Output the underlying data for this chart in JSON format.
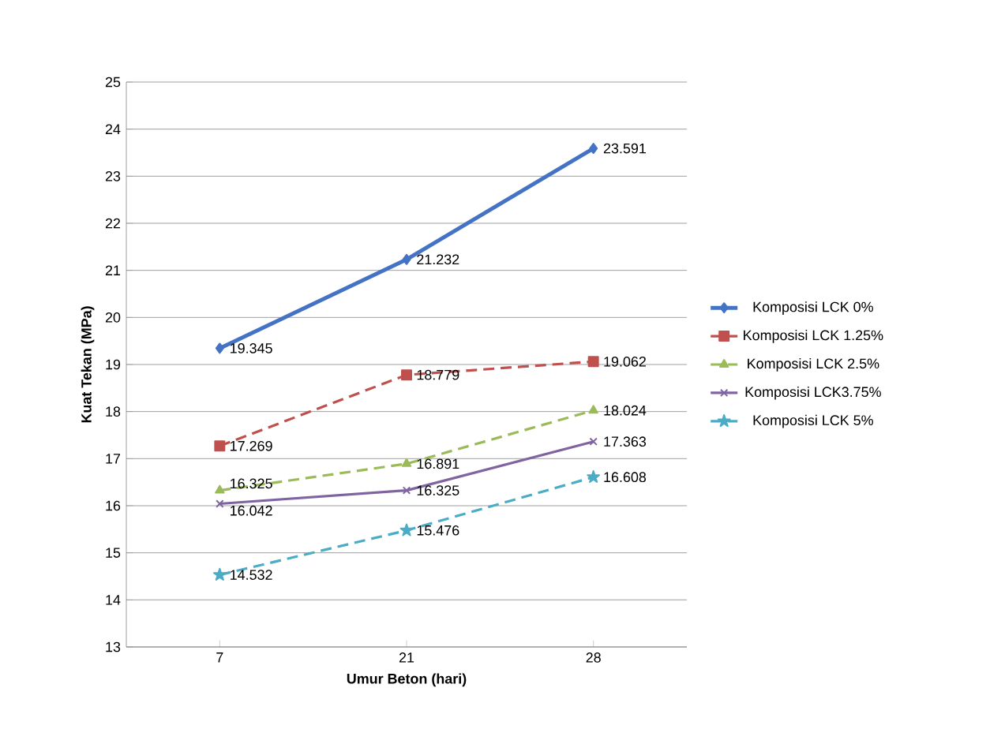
{
  "chart_data": {
    "type": "line",
    "xlabel": "Umur Beton (hari)",
    "ylabel": "Kuat Tekan (MPa)",
    "categories": [
      "7",
      "21",
      "28"
    ],
    "series": [
      {
        "name": "Komposisi LCK 0%",
        "color": "#4472c4",
        "marker": "diamond",
        "line_style": "solid",
        "values": [
          19.345,
          21.232,
          23.591
        ]
      },
      {
        "name": "Komposisi LCK 1.25%",
        "color": "#c0504d",
        "marker": "square",
        "line_style": "dashed",
        "values": [
          17.269,
          18.779,
          19.062
        ]
      },
      {
        "name": "Komposisi LCK 2.5%",
        "color": "#9bbb59",
        "marker": "triangle",
        "line_style": "dashed",
        "values": [
          16.325,
          16.891,
          18.024
        ]
      },
      {
        "name": "Komposisi LCK3.75%",
        "color": "#8064a2",
        "marker": "cross",
        "line_style": "solid",
        "values": [
          16.042,
          16.325,
          17.363
        ]
      },
      {
        "name": "Komposisi LCK 5%",
        "color": "#4bacc6",
        "marker": "star",
        "line_style": "dashed",
        "values": [
          14.532,
          15.476,
          16.608
        ]
      }
    ],
    "ylim": [
      13,
      25
    ],
    "yticks": [
      13,
      14,
      15,
      16,
      17,
      18,
      19,
      20,
      21,
      22,
      23,
      24,
      25
    ],
    "grid": "y",
    "legend": "right",
    "data_labels": true
  }
}
